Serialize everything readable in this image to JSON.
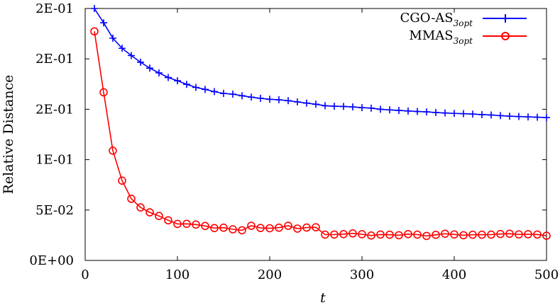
{
  "chart_data": {
    "type": "line",
    "title": "",
    "xlabel": "t",
    "ylabel": "Relative Distance",
    "xlim": [
      0,
      500
    ],
    "ylim": [
      0,
      0.25
    ],
    "x_ticks": [
      0,
      100,
      200,
      300,
      400,
      500
    ],
    "x_tick_labels": [
      "0",
      "100",
      "200",
      "300",
      "400",
      "500"
    ],
    "y_ticks": [
      0,
      0.05,
      0.1,
      0.15,
      0.2,
      0.25
    ],
    "y_tick_labels": [
      "0E+00",
      "5E-02",
      "1E-01",
      "2E-01",
      "2E-01",
      "2E-01"
    ],
    "grid": false,
    "legend_position": "top-right",
    "series": [
      {
        "name": "CGO-AS",
        "subscript": "3opt",
        "color": "#0000ff",
        "marker": "plus",
        "x": [
          10,
          20,
          30,
          40,
          50,
          60,
          70,
          80,
          90,
          100,
          110,
          120,
          130,
          140,
          150,
          160,
          170,
          180,
          190,
          200,
          210,
          220,
          230,
          240,
          250,
          260,
          270,
          280,
          290,
          300,
          310,
          320,
          330,
          340,
          350,
          360,
          370,
          380,
          390,
          400,
          410,
          420,
          430,
          440,
          450,
          460,
          470,
          480,
          490,
          500
        ],
        "values": [
          0.25,
          0.2358,
          0.2205,
          0.2105,
          0.2033,
          0.1967,
          0.1908,
          0.1861,
          0.1815,
          0.1783,
          0.1747,
          0.1717,
          0.1697,
          0.1675,
          0.1657,
          0.165,
          0.1634,
          0.162,
          0.1609,
          0.1599,
          0.1594,
          0.1585,
          0.1573,
          0.1561,
          0.155,
          0.1535,
          0.153,
          0.1528,
          0.1523,
          0.1516,
          0.1511,
          0.15,
          0.1494,
          0.1488,
          0.1483,
          0.1478,
          0.1474,
          0.1468,
          0.1463,
          0.1459,
          0.1456,
          0.1452,
          0.1447,
          0.1443,
          0.1437,
          0.1431,
          0.1428,
          0.1424,
          0.1421,
          0.1417
        ]
      },
      {
        "name": "MMAS",
        "subscript": "3opt",
        "color": "#ff0000",
        "marker": "circle",
        "x": [
          10,
          20,
          30,
          40,
          50,
          60,
          70,
          80,
          90,
          100,
          110,
          120,
          130,
          140,
          150,
          160,
          170,
          180,
          190,
          200,
          210,
          220,
          230,
          240,
          250,
          260,
          270,
          280,
          290,
          300,
          310,
          320,
          330,
          340,
          350,
          360,
          370,
          380,
          390,
          400,
          410,
          420,
          430,
          440,
          450,
          460,
          470,
          480,
          490,
          500
        ],
        "values": [
          0.2273,
          0.1668,
          0.1089,
          0.0792,
          0.0612,
          0.0526,
          0.0477,
          0.0441,
          0.0398,
          0.0362,
          0.0363,
          0.0356,
          0.0342,
          0.0321,
          0.0325,
          0.0309,
          0.0299,
          0.0344,
          0.0322,
          0.0319,
          0.0325,
          0.0344,
          0.0316,
          0.0326,
          0.0329,
          0.0256,
          0.0257,
          0.0261,
          0.0268,
          0.026,
          0.0247,
          0.0257,
          0.0255,
          0.025,
          0.0261,
          0.0256,
          0.0243,
          0.0254,
          0.0265,
          0.0258,
          0.025,
          0.0255,
          0.0255,
          0.0256,
          0.0262,
          0.0265,
          0.0258,
          0.026,
          0.0257,
          0.0245
        ]
      }
    ]
  }
}
